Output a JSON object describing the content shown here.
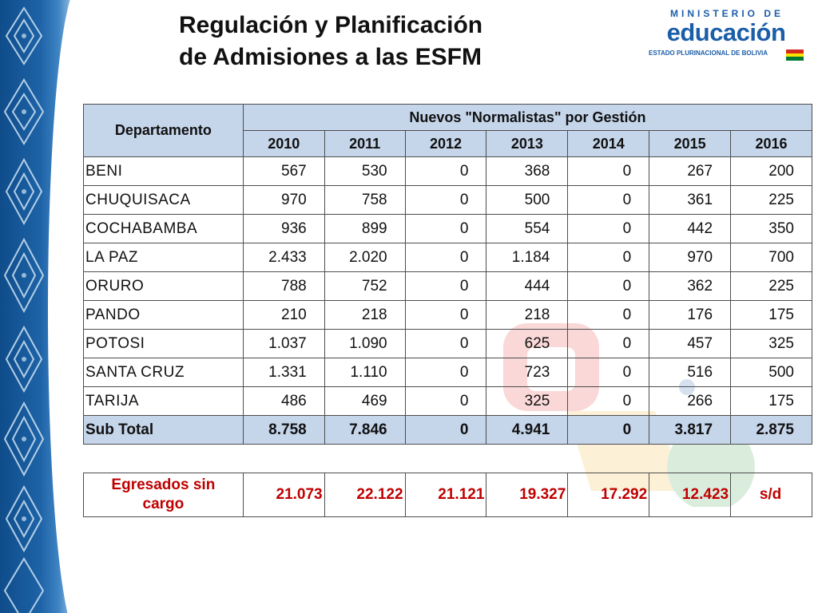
{
  "slide": {
    "title_line1": "Regulación y Planificación",
    "title_line2": "de Admisiones a las ESFM"
  },
  "logo": {
    "line1": "MINISTERIO DE",
    "line2": "educación",
    "line3": "ESTADO PLURINACIONAL DE BOLIVIA"
  },
  "colors": {
    "header_fill": "#c5d5ea",
    "egresados_text": "#c00000",
    "brand_blue": "#1b5ea8"
  },
  "table": {
    "dept_header": "Departamento",
    "group_header": "Nuevos \"Normalistas\" por Gestión",
    "years": [
      "2010",
      "2011",
      "2012",
      "2013",
      "2014",
      "2015",
      "2016"
    ],
    "rows": [
      {
        "dept": "BENI",
        "values": [
          "567",
          "530",
          "0",
          "368",
          "0",
          "267",
          "200"
        ]
      },
      {
        "dept": "CHUQUISACA",
        "values": [
          "970",
          "758",
          "0",
          "500",
          "0",
          "361",
          "225"
        ]
      },
      {
        "dept": "COCHABAMBA",
        "values": [
          "936",
          "899",
          "0",
          "554",
          "0",
          "442",
          "350"
        ]
      },
      {
        "dept": "LA PAZ",
        "values": [
          "2.433",
          "2.020",
          "0",
          "1.184",
          "0",
          "970",
          "700"
        ]
      },
      {
        "dept": "ORURO",
        "values": [
          "788",
          "752",
          "0",
          "444",
          "0",
          "362",
          "225"
        ]
      },
      {
        "dept": "PANDO",
        "values": [
          "210",
          "218",
          "0",
          "218",
          "0",
          "176",
          "175"
        ]
      },
      {
        "dept": "POTOSI",
        "values": [
          "1.037",
          "1.090",
          "0",
          "625",
          "0",
          "457",
          "325"
        ]
      },
      {
        "dept": "SANTA CRUZ",
        "values": [
          "1.331",
          "1.110",
          "0",
          "723",
          "0",
          "516",
          "500"
        ]
      },
      {
        "dept": "TARIJA",
        "values": [
          "486",
          "469",
          "0",
          "325",
          "0",
          "266",
          "175"
        ]
      }
    ],
    "subtotal": {
      "label": "Sub Total",
      "values": [
        "8.758",
        "7.846",
        "0",
        "4.941",
        "0",
        "3.817",
        "2.875"
      ]
    }
  },
  "egresados": {
    "label_line1": "Egresados sin",
    "label_line2": "cargo",
    "values": [
      "21.073",
      "22.122",
      "21.121",
      "19.327",
      "17.292",
      "12.423",
      "s/d"
    ]
  }
}
